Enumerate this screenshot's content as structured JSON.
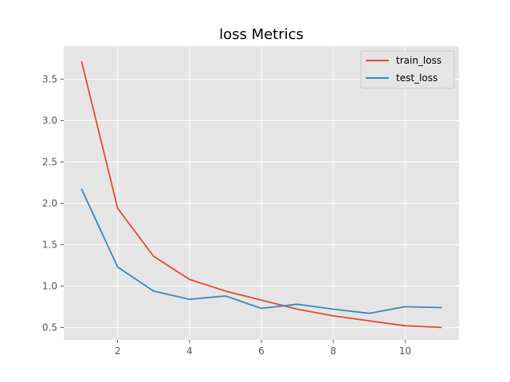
{
  "chart_data": {
    "type": "line",
    "title": "loss Metrics",
    "xlabel": "",
    "ylabel": "",
    "xlim": [
      0.5,
      11.5
    ],
    "ylim": [
      0.35,
      3.9
    ],
    "xticks": [
      2,
      4,
      6,
      8,
      10
    ],
    "yticks": [
      0.5,
      1.0,
      1.5,
      2.0,
      2.5,
      3.0,
      3.5
    ],
    "grid": true,
    "legend_position": "top-right",
    "x": [
      1,
      2,
      3,
      4,
      5,
      6,
      7,
      8,
      9,
      10,
      11
    ],
    "series": [
      {
        "name": "train_loss",
        "color": "#E24A33",
        "values": [
          3.71,
          1.94,
          1.36,
          1.08,
          0.94,
          0.83,
          0.72,
          0.64,
          0.58,
          0.52,
          0.5
        ]
      },
      {
        "name": "test_loss",
        "color": "#348ABD",
        "values": [
          2.17,
          1.23,
          0.94,
          0.84,
          0.88,
          0.73,
          0.78,
          0.72,
          0.67,
          0.75,
          0.74
        ]
      }
    ],
    "colors": {
      "plot_background": "#E5E5E5",
      "grid": "#FFFFFF",
      "tick_label": "#555555"
    }
  }
}
